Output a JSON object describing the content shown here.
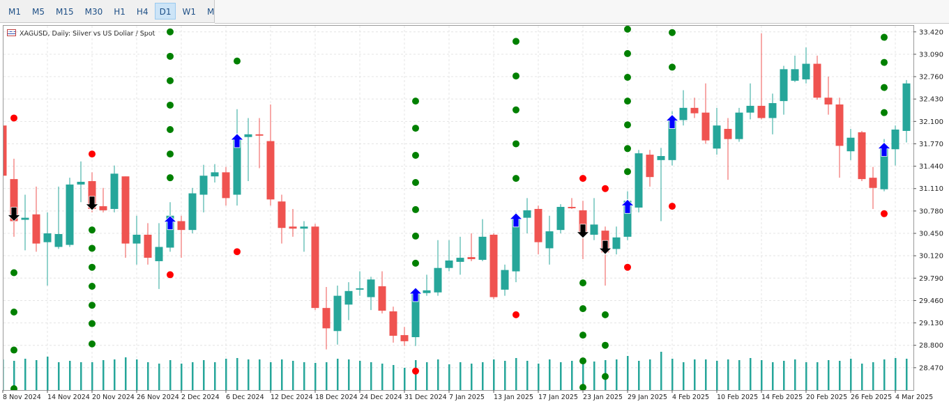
{
  "toolbar": {
    "buttons": [
      "M1",
      "M5",
      "M15",
      "M30",
      "H1",
      "H4",
      "D1",
      "W1",
      "MN"
    ],
    "selected": 6
  },
  "chart_data": {
    "type": "candlestick",
    "title": "XAGUSD, Daily:  Silver vs US Dollar / Spot",
    "categories": [
      "8 Nov 2024",
      null,
      null,
      null,
      "14 Nov 2024",
      null,
      null,
      null,
      "20 Nov 2024",
      null,
      null,
      null,
      "26 Nov 2024",
      null,
      null,
      null,
      "2 Dec 2024",
      null,
      null,
      null,
      "6 Dec 2024",
      null,
      null,
      null,
      "12 Dec 2024",
      null,
      null,
      null,
      "18 Dec 2024",
      null,
      null,
      null,
      "24 Dec 2024",
      null,
      null,
      null,
      "31 Dec 2024",
      null,
      null,
      null,
      "7 Jan 2025",
      null,
      null,
      null,
      "13 Jan 2025",
      null,
      null,
      null,
      "17 Jan 2025",
      null,
      null,
      null,
      "23 Jan 2025",
      null,
      null,
      null,
      "29 Jan 2025",
      null,
      null,
      null,
      "4 Feb 2025",
      null,
      null,
      null,
      "10 Feb 2025",
      null,
      null,
      null,
      "14 Feb 2025",
      null,
      null,
      null,
      "20 Feb 2025",
      null,
      null,
      null,
      "26 Feb 2025",
      null,
      null,
      null,
      "4 Mar 2025",
      null
    ],
    "open": [
      32.04,
      31.25,
      30.65,
      30.73,
      30.32,
      30.25,
      30.28,
      31.17,
      31.22,
      30.85,
      30.81,
      31.29,
      30.3,
      30.43,
      30.04,
      30.24,
      30.63,
      30.5,
      31.02,
      31.29,
      31.35,
      31.02,
      31.87,
      31.91,
      31.81,
      30.92,
      30.55,
      30.52,
      30.55,
      29.35,
      29.01,
      29.4,
      29.62,
      29.51,
      29.67,
      29.3,
      28.95,
      28.92,
      29.57,
      29.58,
      29.94,
      30.03,
      30.1,
      30.06,
      30.43,
      29.62,
      29.89,
      30.68,
      30.81,
      30.23,
      30.5,
      30.84,
      30.79,
      30.43,
      30.49,
      30.22,
      30.4,
      30.83,
      31.61,
      31.53,
      31.53,
      32.12,
      32.3,
      32.23,
      31.7,
      31.99,
      31.84,
      32.23,
      32.33,
      32.15,
      32.4,
      32.7,
      32.72,
      32.95,
      32.45,
      32.35,
      31.66,
      31.94,
      31.27,
      31.1,
      31.69,
      31.96
    ],
    "high": [
      32.04,
      31.55,
      31.02,
      31.14,
      30.76,
      31.14,
      31.27,
      31.51,
      31.35,
      31.12,
      31.45,
      31.29,
      30.71,
      30.6,
      30.6,
      30.91,
      30.71,
      31.12,
      31.46,
      31.47,
      31.43,
      32.28,
      32.15,
      32.15,
      32.35,
      31.02,
      30.81,
      30.63,
      30.59,
      29.66,
      29.68,
      29.73,
      29.89,
      29.81,
      29.89,
      29.37,
      29.07,
      29.63,
      29.84,
      30.35,
      30.35,
      30.4,
      30.45,
      30.66,
      30.45,
      29.99,
      30.76,
      30.97,
      30.86,
      30.71,
      30.88,
      30.97,
      30.93,
      30.97,
      30.55,
      30.55,
      31.07,
      31.68,
      31.68,
      31.71,
      32.25,
      32.56,
      32.45,
      32.66,
      32.3,
      32.15,
      32.3,
      32.66,
      33.4,
      32.51,
      32.92,
      33.07,
      33.19,
      33.07,
      32.76,
      32.45,
      31.99,
      31.96,
      31.43,
      31.84,
      32.04,
      32.71
    ],
    "low": [
      31.28,
      30.4,
      30.2,
      30.18,
      29.68,
      30.22,
      30.25,
      30.91,
      30.76,
      30.76,
      30.76,
      30.09,
      29.99,
      29.99,
      29.63,
      30.18,
      30.09,
      30.45,
      30.76,
      31.2,
      30.86,
      30.86,
      31.22,
      31.41,
      30.86,
      30.3,
      30.4,
      30.18,
      29.32,
      28.74,
      28.81,
      29.17,
      29.53,
      29.32,
      29.27,
      28.84,
      28.79,
      28.79,
      29.53,
      29.53,
      29.89,
      29.84,
      30.04,
      30.04,
      29.48,
      29.53,
      29.73,
      30.45,
      30.14,
      29.99,
      30.45,
      30.81,
      30.07,
      30.35,
      29.68,
      30.14,
      30.35,
      30.76,
      31.14,
      30.63,
      31.45,
      32.04,
      32.15,
      31.77,
      31.61,
      31.24,
      31.8,
      32.13,
      32.13,
      31.91,
      32.2,
      32.68,
      32.66,
      32.42,
      32.2,
      31.27,
      31.53,
      31.22,
      30.81,
      31.07,
      31.45,
      31.79
    ],
    "close": [
      31.3,
      30.63,
      30.68,
      30.3,
      30.45,
      30.44,
      31.17,
      31.21,
      30.81,
      30.79,
      31.33,
      30.3,
      30.43,
      30.09,
      30.25,
      30.71,
      30.5,
      31.04,
      31.3,
      31.35,
      30.97,
      31.84,
      31.91,
      31.89,
      30.95,
      30.53,
      30.52,
      30.55,
      29.35,
      29.05,
      29.53,
      29.6,
      29.64,
      29.77,
      29.31,
      28.94,
      28.86,
      29.56,
      29.61,
      29.94,
      30.05,
      30.09,
      30.07,
      30.4,
      29.51,
      29.91,
      30.66,
      30.79,
      30.32,
      30.48,
      30.84,
      30.82,
      30.43,
      30.58,
      30.17,
      30.39,
      30.93,
      31.63,
      31.28,
      31.59,
      32.13,
      32.3,
      32.22,
      31.82,
      32.04,
      31.84,
      32.23,
      32.33,
      32.15,
      32.37,
      32.87,
      32.87,
      32.95,
      32.45,
      32.35,
      31.74,
      31.86,
      31.25,
      31.12,
      31.72,
      31.98,
      32.66
    ],
    "volume": [
      44,
      42,
      45,
      43,
      48,
      40,
      42,
      40,
      40,
      43,
      44,
      47,
      44,
      40,
      38,
      43,
      38,
      40,
      43,
      40,
      45,
      46,
      44,
      44,
      40,
      44,
      42,
      40,
      39,
      40,
      45,
      44,
      42,
      40,
      38,
      36,
      32,
      43,
      40,
      44,
      37,
      40,
      38,
      40,
      44,
      42,
      46,
      42,
      38,
      44,
      40,
      42,
      44,
      41,
      43,
      44,
      49,
      42,
      44,
      55,
      45,
      40,
      44,
      44,
      42,
      44,
      43,
      46,
      43,
      40,
      42,
      44,
      40,
      40,
      43,
      42,
      45,
      38,
      40,
      44,
      46,
      45
    ],
    "up_color": "#26a69a",
    "down_color": "#ef5350",
    "volume_color": "#26a69a",
    "dot_groups": [
      {
        "color": "#008000",
        "points": [
          {
            "bar": 1,
            "values": [
              29.87,
              29.29,
              28.73,
              28.16
            ]
          },
          {
            "bar": 8,
            "values": [
              30.5,
              30.23,
              29.95,
              29.67,
              29.39,
              29.12,
              28.82
            ]
          },
          {
            "bar": 15,
            "values": [
              33.42,
              33.06,
              32.7,
              32.34,
              31.98,
              31.62,
              31.27
            ]
          },
          {
            "bar": 21,
            "values": [
              32.99
            ]
          },
          {
            "bar": 37,
            "values": [
              32.4,
              32.0,
              31.6,
              31.2,
              30.8,
              30.41,
              30.01
            ]
          },
          {
            "bar": 46,
            "values": [
              33.28,
              32.77,
              32.27,
              31.77,
              31.26
            ]
          },
          {
            "bar": 52,
            "values": [
              29.72,
              29.34,
              28.95,
              28.57,
              28.18
            ]
          },
          {
            "bar": 54,
            "values": [
              29.25,
              28.8,
              28.34
            ]
          },
          {
            "bar": 56,
            "values": [
              33.46,
              33.1,
              32.75,
              32.4,
              32.05,
              31.7,
              31.36
            ]
          },
          {
            "bar": 60,
            "values": [
              33.41,
              32.9
            ]
          },
          {
            "bar": 79,
            "values": [
              33.34,
              32.97,
              32.6,
              32.23
            ]
          }
        ]
      },
      {
        "color": "#ff0000",
        "points": [
          {
            "bar": 1,
            "values": [
              32.15
            ]
          },
          {
            "bar": 8,
            "values": [
              31.62
            ]
          },
          {
            "bar": 15,
            "values": [
              29.84
            ]
          },
          {
            "bar": 21,
            "values": [
              30.18
            ]
          },
          {
            "bar": 37,
            "values": [
              28.42
            ]
          },
          {
            "bar": 46,
            "values": [
              29.25
            ]
          },
          {
            "bar": 52,
            "values": [
              31.26
            ]
          },
          {
            "bar": 54,
            "values": [
              31.11
            ]
          },
          {
            "bar": 56,
            "values": [
              29.95
            ]
          },
          {
            "bar": 60,
            "values": [
              30.85
            ]
          },
          {
            "bar": 79,
            "values": [
              30.74
            ]
          }
        ]
      }
    ],
    "arrows": [
      {
        "direction": "down",
        "color": "#000000",
        "points": [
          {
            "bar": 1,
            "value": 30.63
          },
          {
            "bar": 8,
            "value": 30.79
          },
          {
            "bar": 52,
            "value": 30.38
          },
          {
            "bar": 54,
            "value": 30.14
          }
        ]
      },
      {
        "direction": "up",
        "color": "#0000ff",
        "points": [
          {
            "bar": 15,
            "value": 30.71
          },
          {
            "bar": 21,
            "value": 31.92
          },
          {
            "bar": 37,
            "value": 29.65
          },
          {
            "bar": 46,
            "value": 30.75
          },
          {
            "bar": 56,
            "value": 30.95
          },
          {
            "bar": 60,
            "value": 32.2
          },
          {
            "bar": 79,
            "value": 31.79
          }
        ]
      }
    ],
    "ylim": [
      28.14,
      33.51
    ],
    "yticks": [
      {
        "value": 33.42,
        "label": "33.420"
      },
      {
        "value": 33.09,
        "label": "33.090"
      },
      {
        "value": 32.76,
        "label": "32.760"
      },
      {
        "value": 32.43,
        "label": "32.430"
      },
      {
        "value": 32.1,
        "label": "32.100"
      },
      {
        "value": 31.77,
        "label": "31.770"
      },
      {
        "value": 31.44,
        "label": "31.440"
      },
      {
        "value": 31.11,
        "label": "31.110"
      },
      {
        "value": 30.78,
        "label": "30.780"
      },
      {
        "value": 30.45,
        "label": "30.450"
      },
      {
        "value": 30.12,
        "label": "30.120"
      },
      {
        "value": 29.79,
        "label": "29.790"
      },
      {
        "value": 29.46,
        "label": "29.460"
      },
      {
        "value": 29.13,
        "label": "29.130"
      },
      {
        "value": 28.8,
        "label": "28.800"
      },
      {
        "value": 28.47,
        "label": "28.470"
      }
    ],
    "grid": true
  }
}
